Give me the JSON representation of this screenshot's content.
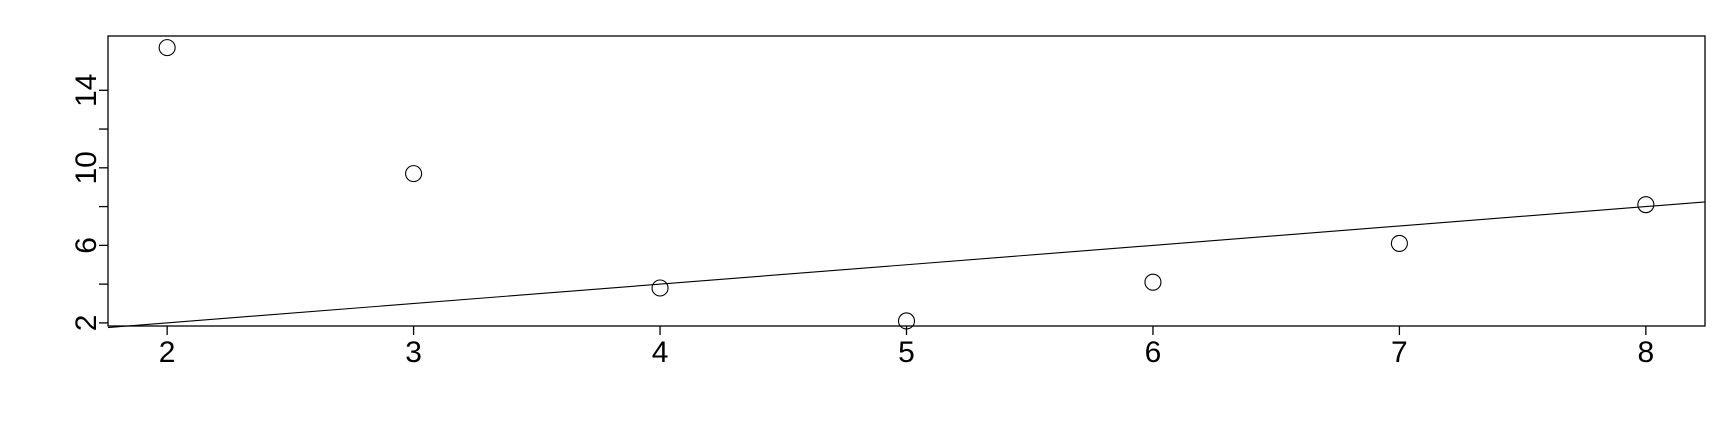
{
  "chart_data": {
    "type": "scatter",
    "title": "",
    "xlabel": "",
    "ylabel": "",
    "x_ticks": [
      "2",
      "3",
      "4",
      "5",
      "6",
      "7",
      "8"
    ],
    "y_ticks": [
      "2",
      "6",
      "10",
      "14"
    ],
    "xlim": [
      1.76,
      8.24
    ],
    "ylim": [
      1.84,
      16.8
    ],
    "points": [
      {
        "x": 2,
        "y": 16.2
      },
      {
        "x": 3,
        "y": 9.7
      },
      {
        "x": 4,
        "y": 3.8
      },
      {
        "x": 5,
        "y": 2.1
      },
      {
        "x": 6,
        "y": 4.1
      },
      {
        "x": 7,
        "y": 6.1
      },
      {
        "x": 8,
        "y": 8.1
      }
    ],
    "reference_line": {
      "intercept": 0,
      "slope": 1
    },
    "grid": false,
    "legend": "none"
  }
}
